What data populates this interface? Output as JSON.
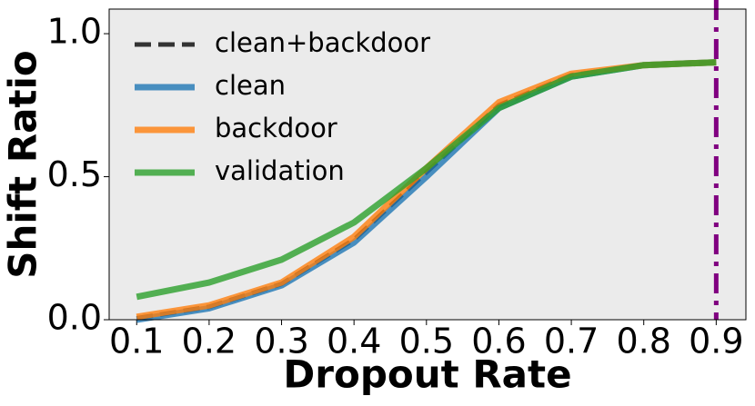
{
  "chart_data": {
    "type": "line",
    "xlabel": "Dropout Rate",
    "ylabel": "Shift Ratio",
    "x": [
      0.1,
      0.2,
      0.3,
      0.4,
      0.5,
      0.6,
      0.7,
      0.8,
      0.9
    ],
    "series": [
      {
        "name": "clean+backdoor",
        "color": "#333333",
        "linestyle": "dashed",
        "values": [
          0.005,
          0.045,
          0.125,
          0.28,
          0.515,
          0.75,
          0.855,
          0.89,
          0.9
        ]
      },
      {
        "name": "clean",
        "color": "#1f77b4",
        "linestyle": "solid",
        "values": [
          0.0,
          0.04,
          0.12,
          0.27,
          0.5,
          0.74,
          0.85,
          0.89,
          0.9
        ]
      },
      {
        "name": "backdoor",
        "color": "#ff7f0e",
        "linestyle": "solid",
        "values": [
          0.01,
          0.05,
          0.13,
          0.29,
          0.53,
          0.76,
          0.86,
          0.89,
          0.9
        ]
      },
      {
        "name": "validation",
        "color": "#2ca02c",
        "linestyle": "solid",
        "values": [
          0.08,
          0.13,
          0.21,
          0.34,
          0.53,
          0.74,
          0.85,
          0.89,
          0.9
        ]
      }
    ],
    "vline": {
      "x": 0.9,
      "color": "#800080"
    },
    "xlim": [
      0.062,
      0.941
    ],
    "ylim": [
      0,
      1.086
    ],
    "xticks": [
      0.1,
      0.2,
      0.3,
      0.4,
      0.5,
      0.6,
      0.7,
      0.8,
      0.9
    ],
    "yticks": [
      {
        "value": 0,
        "label": "0.0"
      },
      {
        "value": 0.5,
        "label": "0.5"
      },
      {
        "value": 1,
        "label": "1.0"
      }
    ],
    "legend": "upper left"
  }
}
